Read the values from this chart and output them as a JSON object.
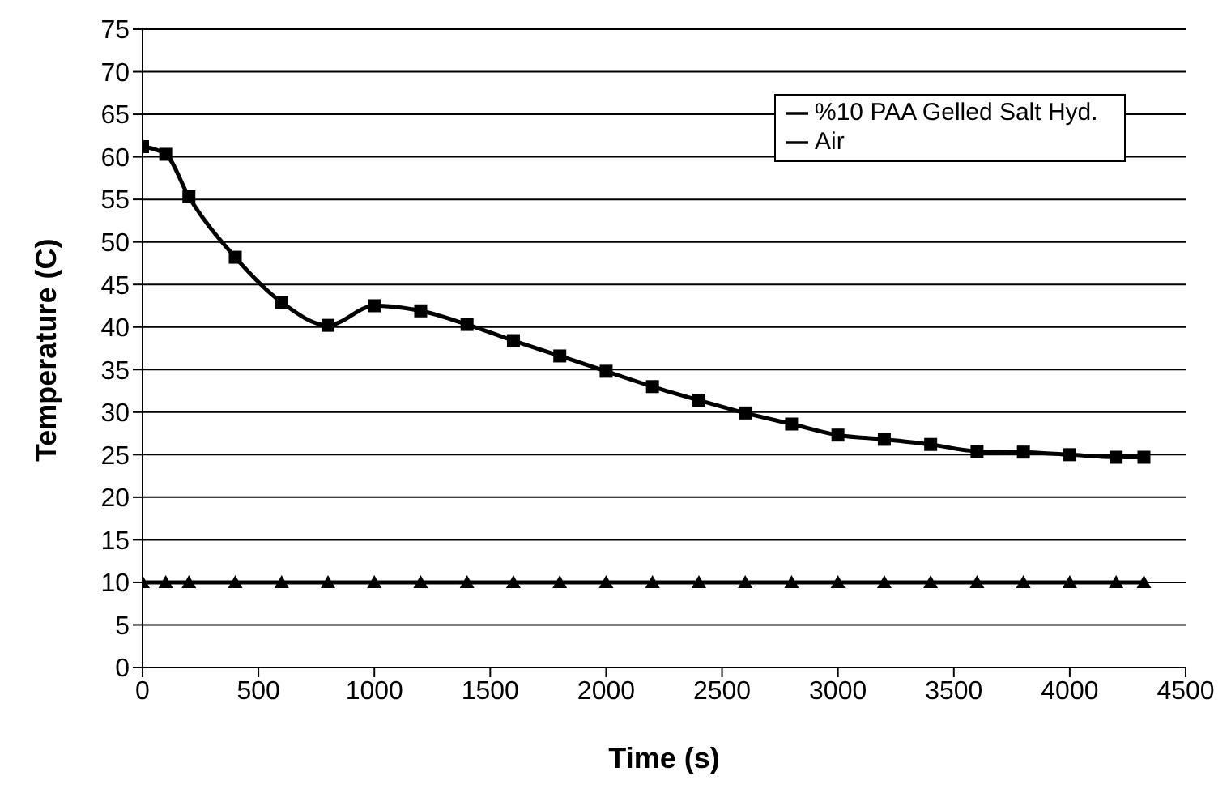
{
  "chart_data": {
    "type": "line",
    "xlabel": "Time (s)",
    "ylabel": "Temperature (C)",
    "x": [
      0,
      100,
      200,
      400,
      600,
      800,
      1000,
      1200,
      1400,
      1600,
      1800,
      2000,
      2200,
      2400,
      2600,
      2800,
      3000,
      3200,
      3400,
      3600,
      3800,
      4000,
      4200,
      4320
    ],
    "series": [
      {
        "name": "%10 PAA Gelled Salt Hyd.",
        "color": "#000000",
        "marker": "square",
        "values": [
          61.2,
          60.3,
          55.3,
          48.2,
          42.9,
          40.2,
          42.5,
          41.9,
          40.3,
          38.4,
          36.6,
          34.8,
          33.0,
          31.4,
          29.9,
          28.6,
          27.3,
          26.8,
          26.2,
          25.4,
          25.3,
          25.0,
          24.7,
          24.7
        ]
      },
      {
        "name": "Air",
        "color": "#000000",
        "marker": "triangle",
        "values": [
          10,
          10,
          10,
          10,
          10,
          10,
          10,
          10,
          10,
          10,
          10,
          10,
          10,
          10,
          10,
          10,
          10,
          10,
          10,
          10,
          10,
          10,
          10,
          10
        ]
      }
    ],
    "xlim": [
      0,
      4500
    ],
    "xticks": [
      0,
      500,
      1000,
      1500,
      2000,
      2500,
      3000,
      3500,
      4000,
      4500
    ],
    "ylim": [
      0,
      75
    ],
    "yticks": [
      0,
      5,
      10,
      15,
      20,
      25,
      30,
      35,
      40,
      45,
      50,
      55,
      60,
      65,
      70,
      75
    ],
    "grid": "y",
    "legend": "top right",
    "line_style": "solid"
  }
}
